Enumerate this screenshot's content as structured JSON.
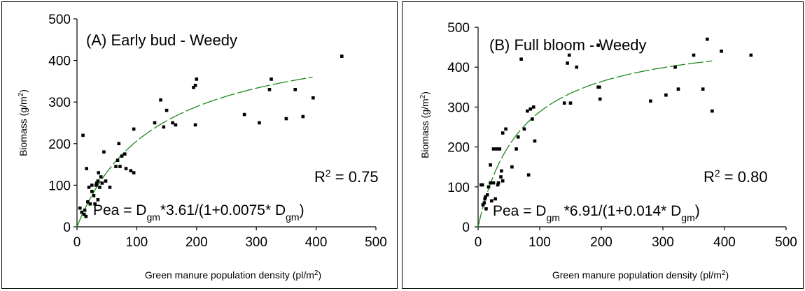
{
  "chart_data": [
    {
      "type": "scatter",
      "panel_label": "(A) Early bud - Weedy",
      "xlabel": "Green manure population density (pl/m",
      "xlabel_sup": "2",
      "xlabel_end": ")",
      "ylabel": "Biomass (g/m",
      "ylabel_sup": "2",
      "ylabel_end": ")",
      "xlim": [
        0,
        500
      ],
      "ylim": [
        0,
        500
      ],
      "xticks": [
        0,
        100,
        200,
        300,
        400,
        500
      ],
      "yticks": [
        0,
        100,
        200,
        300,
        400,
        500
      ],
      "grid": false,
      "r2": {
        "prefix": "R",
        "sup": "2",
        "text": " = 0.75"
      },
      "equation": {
        "p1": "Pea = D",
        "s1": "gm",
        "p2": "*3.61/(1+0.0075* D",
        "s2": "gm",
        "p3": ")"
      },
      "fit": {
        "a": 3.61,
        "b": 0.0075,
        "x_max": 395
      },
      "points": [
        [
          5,
          45
        ],
        [
          8,
          35
        ],
        [
          10,
          220
        ],
        [
          12,
          30
        ],
        [
          13,
          40
        ],
        [
          15,
          25
        ],
        [
          16,
          140
        ],
        [
          18,
          60
        ],
        [
          20,
          95
        ],
        [
          22,
          55
        ],
        [
          25,
          100
        ],
        [
          25,
          85
        ],
        [
          28,
          75
        ],
        [
          30,
          55
        ],
        [
          32,
          100
        ],
        [
          33,
          105
        ],
        [
          35,
          65
        ],
        [
          35,
          110
        ],
        [
          36,
          130
        ],
        [
          38,
          95
        ],
        [
          40,
          120
        ],
        [
          42,
          105
        ],
        [
          45,
          180
        ],
        [
          48,
          110
        ],
        [
          55,
          95
        ],
        [
          65,
          145
        ],
        [
          68,
          160
        ],
        [
          70,
          200
        ],
        [
          72,
          145
        ],
        [
          75,
          170
        ],
        [
          80,
          175
        ],
        [
          82,
          140
        ],
        [
          90,
          135
        ],
        [
          95,
          235
        ],
        [
          95,
          130
        ],
        [
          130,
          250
        ],
        [
          140,
          305
        ],
        [
          145,
          240
        ],
        [
          150,
          280
        ],
        [
          160,
          250
        ],
        [
          165,
          245
        ],
        [
          195,
          335
        ],
        [
          198,
          340
        ],
        [
          200,
          355
        ],
        [
          198,
          245
        ],
        [
          280,
          270
        ],
        [
          305,
          250
        ],
        [
          322,
          330
        ],
        [
          325,
          355
        ],
        [
          350,
          260
        ],
        [
          365,
          330
        ],
        [
          378,
          265
        ],
        [
          395,
          310
        ],
        [
          443,
          410
        ]
      ]
    },
    {
      "type": "scatter",
      "panel_label": "(B) Full bloom - Weedy",
      "xlabel": "Green manure population density (pl/m",
      "xlabel_sup": "2",
      "xlabel_end": ")",
      "ylabel": "Biomass (g/m",
      "ylabel_sup": "2",
      "ylabel_end": ")",
      "xlim": [
        0,
        500
      ],
      "ylim": [
        0,
        500
      ],
      "xticks": [
        0,
        100,
        200,
        300,
        400,
        500
      ],
      "yticks": [
        0,
        100,
        200,
        300,
        400,
        500
      ],
      "grid": false,
      "r2": {
        "prefix": "R",
        "sup": "2",
        "text": " = 0.80"
      },
      "equation": {
        "p1": "Pea = D",
        "s1": "gm",
        "p2": " *6.91/(1+0.014* D",
        "s2": "gm",
        "p3": ")"
      },
      "fit": {
        "a": 6.91,
        "b": 0.014,
        "x_max": 380
      },
      "points": [
        [
          5,
          105
        ],
        [
          7,
          105
        ],
        [
          8,
          55
        ],
        [
          10,
          60
        ],
        [
          11,
          70
        ],
        [
          12,
          75
        ],
        [
          13,
          45
        ],
        [
          15,
          80
        ],
        [
          17,
          100
        ],
        [
          20,
          110
        ],
        [
          20,
          155
        ],
        [
          22,
          65
        ],
        [
          25,
          195
        ],
        [
          25,
          110
        ],
        [
          28,
          70
        ],
        [
          30,
          195
        ],
        [
          32,
          105
        ],
        [
          33,
          110
        ],
        [
          35,
          195
        ],
        [
          37,
          125
        ],
        [
          38,
          140
        ],
        [
          40,
          115
        ],
        [
          40,
          235
        ],
        [
          45,
          245
        ],
        [
          55,
          150
        ],
        [
          62,
          195
        ],
        [
          65,
          225
        ],
        [
          70,
          420
        ],
        [
          75,
          245
        ],
        [
          80,
          290
        ],
        [
          82,
          130
        ],
        [
          85,
          295
        ],
        [
          88,
          270
        ],
        [
          90,
          300
        ],
        [
          92,
          215
        ],
        [
          140,
          310
        ],
        [
          145,
          410
        ],
        [
          148,
          430
        ],
        [
          150,
          310
        ],
        [
          160,
          400
        ],
        [
          195,
          455
        ],
        [
          195,
          350
        ],
        [
          197,
          350
        ],
        [
          198,
          320
        ],
        [
          280,
          315
        ],
        [
          305,
          330
        ],
        [
          320,
          400
        ],
        [
          325,
          345
        ],
        [
          350,
          430
        ],
        [
          365,
          345
        ],
        [
          372,
          470
        ],
        [
          380,
          290
        ],
        [
          395,
          440
        ],
        [
          443,
          430
        ]
      ]
    }
  ]
}
